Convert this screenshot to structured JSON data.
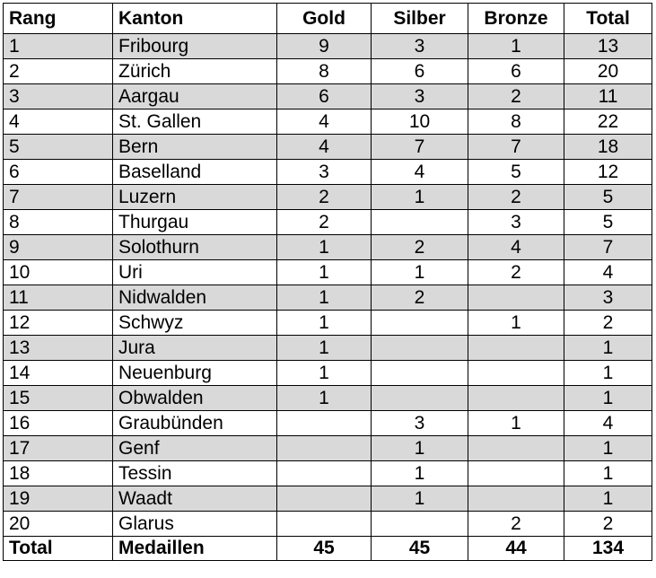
{
  "table": {
    "columns": [
      "Rang",
      "Kanton",
      "Gold",
      "Silber",
      "Bronze",
      "Total"
    ],
    "rows": [
      {
        "rang": "1",
        "kanton": "Fribourg",
        "gold": "9",
        "silber": "3",
        "bronze": "1",
        "total": "13",
        "shaded": true
      },
      {
        "rang": "2",
        "kanton": "Zürich",
        "gold": "8",
        "silber": "6",
        "bronze": "6",
        "total": "20",
        "shaded": false
      },
      {
        "rang": "3",
        "kanton": "Aargau",
        "gold": "6",
        "silber": "3",
        "bronze": "2",
        "total": "11",
        "shaded": true
      },
      {
        "rang": "4",
        "kanton": "St. Gallen",
        "gold": "4",
        "silber": "10",
        "bronze": "8",
        "total": "22",
        "shaded": false
      },
      {
        "rang": "5",
        "kanton": "Bern",
        "gold": "4",
        "silber": "7",
        "bronze": "7",
        "total": "18",
        "shaded": true
      },
      {
        "rang": "6",
        "kanton": "Baselland",
        "gold": "3",
        "silber": "4",
        "bronze": "5",
        "total": "12",
        "shaded": false
      },
      {
        "rang": "7",
        "kanton": "Luzern",
        "gold": "2",
        "silber": "1",
        "bronze": "2",
        "total": "5",
        "shaded": true
      },
      {
        "rang": "8",
        "kanton": "Thurgau",
        "gold": "2",
        "silber": "",
        "bronze": "3",
        "total": "5",
        "shaded": false
      },
      {
        "rang": "9",
        "kanton": "Solothurn",
        "gold": "1",
        "silber": "2",
        "bronze": "4",
        "total": "7",
        "shaded": true
      },
      {
        "rang": "10",
        "kanton": "Uri",
        "gold": "1",
        "silber": "1",
        "bronze": "2",
        "total": "4",
        "shaded": false
      },
      {
        "rang": "11",
        "kanton": "Nidwalden",
        "gold": "1",
        "silber": "2",
        "bronze": "",
        "total": "3",
        "shaded": true
      },
      {
        "rang": "12",
        "kanton": "Schwyz",
        "gold": "1",
        "silber": "",
        "bronze": "1",
        "total": "2",
        "shaded": false
      },
      {
        "rang": "13",
        "kanton": "Jura",
        "gold": "1",
        "silber": "",
        "bronze": "",
        "total": "1",
        "shaded": true
      },
      {
        "rang": "14",
        "kanton": "Neuenburg",
        "gold": "1",
        "silber": "",
        "bronze": "",
        "total": "1",
        "shaded": false
      },
      {
        "rang": "15",
        "kanton": "Obwalden",
        "gold": "1",
        "silber": "",
        "bronze": "",
        "total": "1",
        "shaded": true
      },
      {
        "rang": "16",
        "kanton": "Graubünden",
        "gold": "",
        "silber": "3",
        "bronze": "1",
        "total": "4",
        "shaded": false
      },
      {
        "rang": "17",
        "kanton": "Genf",
        "gold": "",
        "silber": "1",
        "bronze": "",
        "total": "1",
        "shaded": true
      },
      {
        "rang": "18",
        "kanton": "Tessin",
        "gold": "",
        "silber": "1",
        "bronze": "",
        "total": "1",
        "shaded": false
      },
      {
        "rang": "19",
        "kanton": "Waadt",
        "gold": "",
        "silber": "1",
        "bronze": "",
        "total": "1",
        "shaded": true
      },
      {
        "rang": "20",
        "kanton": "Glarus",
        "gold": "",
        "silber": "",
        "bronze": "2",
        "total": "2",
        "shaded": false
      }
    ],
    "footer": {
      "rang": "Total",
      "kanton": "Medaillen",
      "gold": "45",
      "silber": "45",
      "bronze": "44",
      "total": "134"
    },
    "colors": {
      "shaded_row": "#d9d9d9",
      "border": "#000000"
    }
  }
}
